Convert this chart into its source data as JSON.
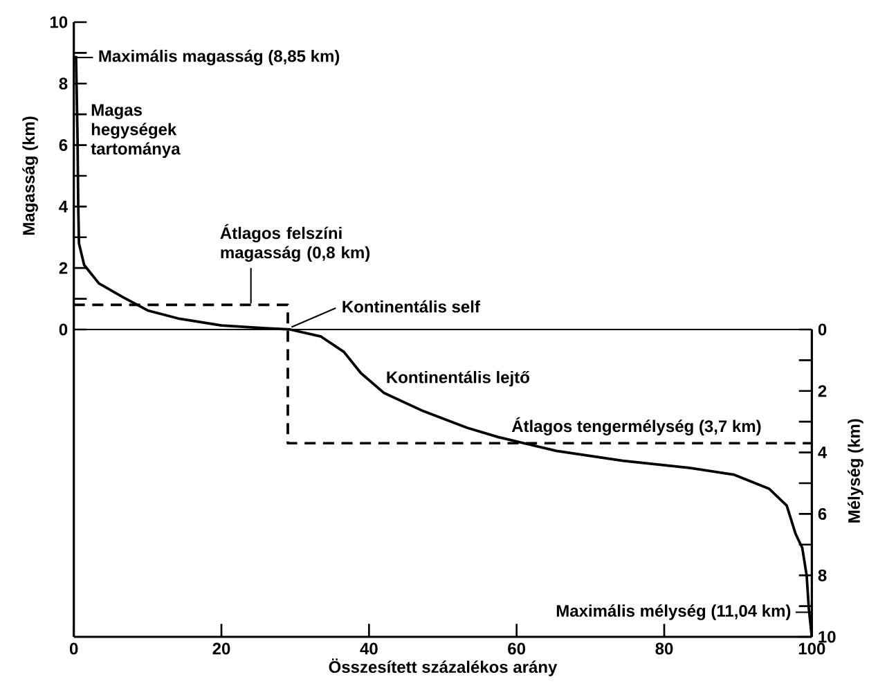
{
  "chart_data": {
    "type": "line",
    "xlabel": "Összesített százalékos arány",
    "ylabel": "Magasság (km)",
    "y2label": "Mélység (km)",
    "xlim": [
      0,
      100
    ],
    "xticks": [
      0,
      20,
      40,
      60,
      80,
      100
    ],
    "ylim": [
      -10,
      10
    ],
    "yticks": [
      0,
      {
        "value": 1,
        "label": null
      },
      2,
      {
        "value": 3,
        "label": null
      },
      4,
      {
        "value": 5,
        "label": null
      },
      6,
      {
        "value": 7,
        "label": null
      },
      8,
      {
        "value": 9,
        "label": null
      },
      10
    ],
    "y2lim": [
      10,
      -10
    ],
    "y2ticks": [
      0,
      {
        "value": 1,
        "label": null
      },
      2,
      {
        "value": 3,
        "label": null
      },
      4,
      {
        "value": 5,
        "label": null
      },
      6,
      {
        "value": 7,
        "label": null
      },
      8,
      {
        "value": 9,
        "label": null
      },
      10
    ],
    "marker": "none",
    "line_style": "solid",
    "grid": false,
    "series": [
      {
        "color": "#000000",
        "x": [
          0.3,
          0.5,
          0.6,
          0.7,
          1.4,
          3.4,
          6.5,
          10,
          14.3,
          20,
          26,
          29.3,
          33.5,
          36.6,
          38.9,
          42,
          47.4,
          53.3,
          57.5,
          65.4,
          74.4,
          83.4,
          89.4,
          94.2,
          96.6,
          97.8,
          98.7,
          99.3,
          99.6,
          100
        ],
        "values": [
          8.9,
          6.3,
          4,
          2.8,
          2.1,
          1.5,
          1.07,
          0.62,
          0.35,
          0.13,
          0.04,
          0,
          -0.23,
          -0.73,
          -1.42,
          -2.06,
          -2.66,
          -3.2,
          -3.5,
          -3.95,
          -4.27,
          -4.5,
          -4.72,
          -5.18,
          -5.73,
          -6.65,
          -7.1,
          -8.0,
          -9.1,
          -10
        ]
      },
      {
        "color": "#000000",
        "line_style": "dashed",
        "x": [
          0,
          29,
          29,
          100
        ],
        "values": [
          0.8,
          0.8,
          -3.7,
          -3.7
        ]
      }
    ],
    "ref_lines": [
      {
        "axis": "y",
        "value": 0,
        "color": "#000000"
      }
    ],
    "annotations": [
      {
        "text": "Maximális magasság (8,85 km)",
        "x": 0,
        "y": 8.85
      },
      "Magas hegységek tartománya",
      {
        "text": "Átlagos felszíni magasság (0,8 km)",
        "x": 24,
        "y": 0.8
      },
      {
        "text": "Kontinentális self",
        "x": 29,
        "y": 0
      },
      "Kontinentális lejtő",
      "Átlagos tengermélység (3,7 km)",
      "Maximális mélység (11,04 km)"
    ]
  }
}
